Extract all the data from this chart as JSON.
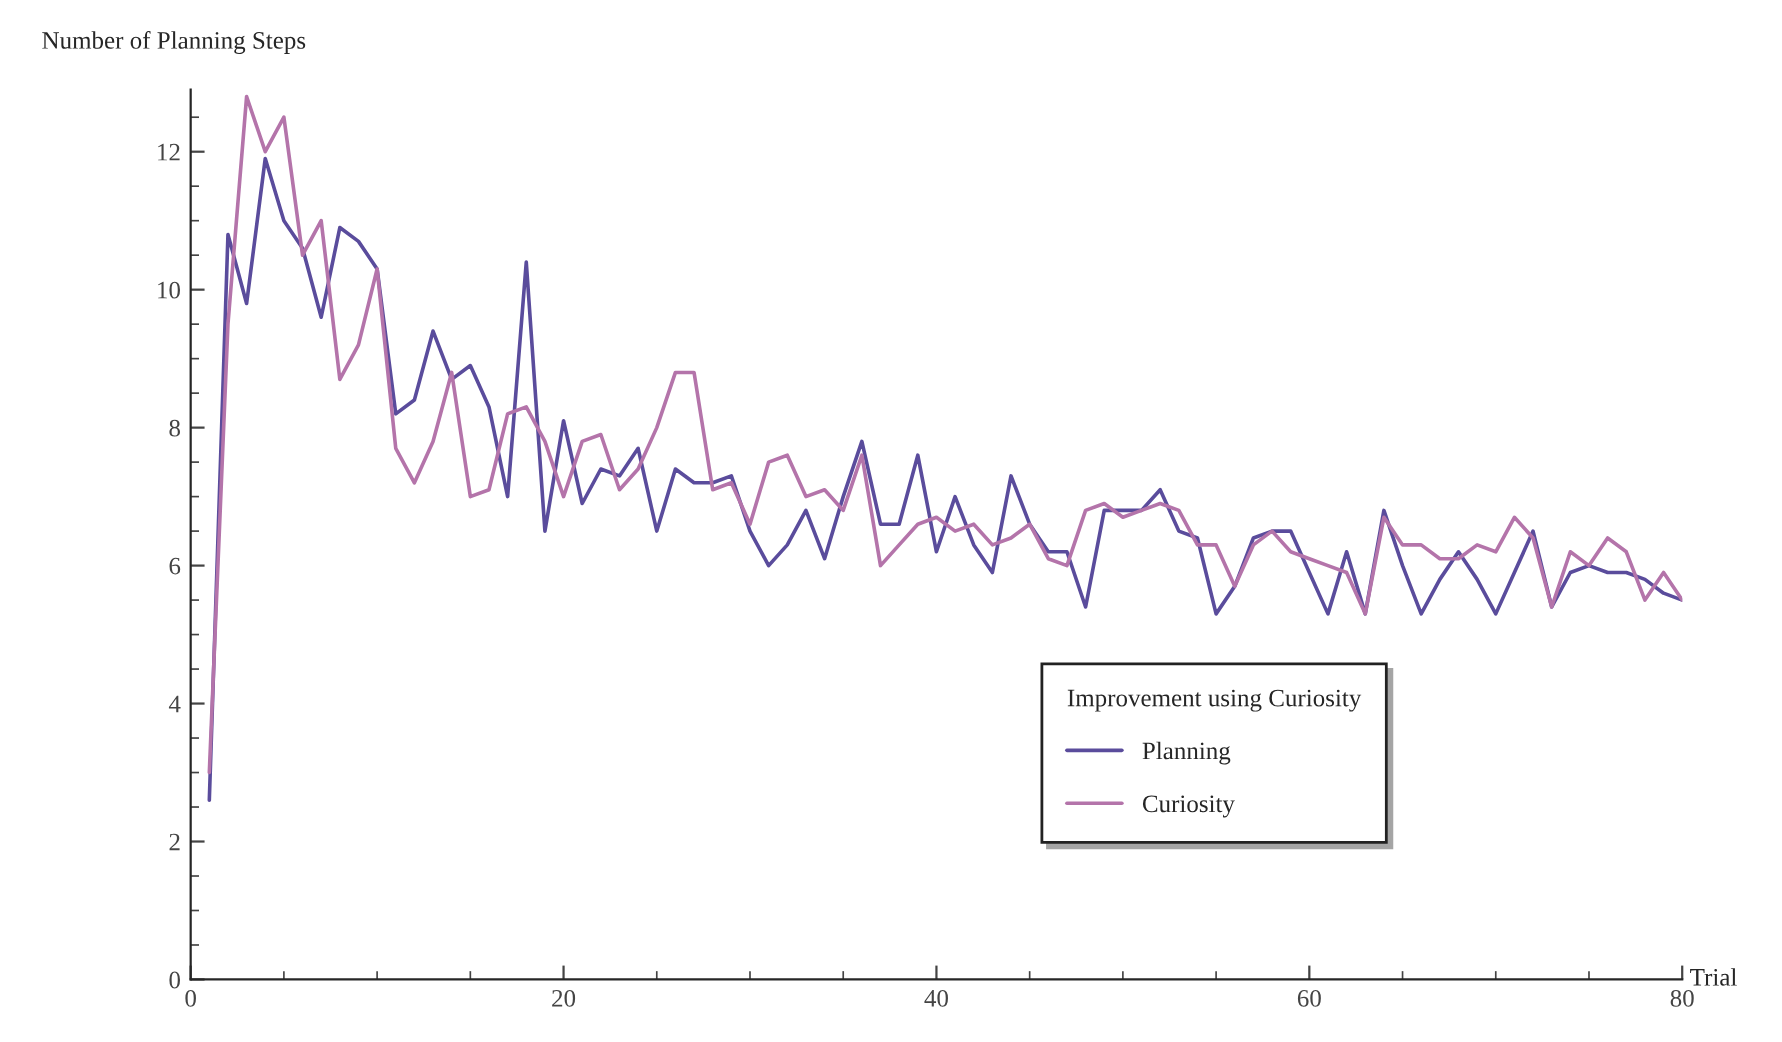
{
  "chart_data": {
    "type": "line",
    "xlabel": "Trial",
    "ylabel": "Number of Planning Steps",
    "legend_title": "Improvement using Curiosity",
    "legend": "bottom right",
    "grid": false,
    "marker": "none",
    "line_style": "solid",
    "x": [
      1,
      2,
      3,
      4,
      5,
      6,
      7,
      8,
      9,
      10,
      11,
      12,
      13,
      14,
      15,
      16,
      17,
      18,
      19,
      20,
      21,
      22,
      23,
      24,
      25,
      26,
      27,
      28,
      29,
      30,
      31,
      32,
      33,
      34,
      35,
      36,
      37,
      38,
      39,
      40,
      41,
      42,
      43,
      44,
      45,
      46,
      47,
      48,
      49,
      50,
      51,
      52,
      53,
      54,
      55,
      56,
      57,
      58,
      59,
      60,
      61,
      62,
      63,
      64,
      65,
      66,
      67,
      68,
      69,
      70,
      71,
      72,
      73,
      74,
      75,
      76,
      77,
      78,
      79,
      80
    ],
    "xlim": [
      0,
      80
    ],
    "xticks": [
      0,
      20,
      40,
      60,
      80
    ],
    "ylim": [
      0,
      12.9
    ],
    "yticks": [
      0,
      2,
      4,
      6,
      8,
      10,
      12
    ],
    "series": [
      {
        "name": "Planning",
        "color": "#5a4c9c",
        "values": [
          2.6,
          10.8,
          9.8,
          11.9,
          11.0,
          10.6,
          9.6,
          10.9,
          10.7,
          10.3,
          8.2,
          8.4,
          9.4,
          8.7,
          8.9,
          8.3,
          7.0,
          10.4,
          6.5,
          8.1,
          6.9,
          7.4,
          7.3,
          7.7,
          6.5,
          7.4,
          7.2,
          7.2,
          7.3,
          6.5,
          6.0,
          6.3,
          6.8,
          6.1,
          7.0,
          7.8,
          6.6,
          6.6,
          7.6,
          6.2,
          7.0,
          6.3,
          5.9,
          7.3,
          6.6,
          6.2,
          6.2,
          5.4,
          6.8,
          6.8,
          6.8,
          7.1,
          6.5,
          6.4,
          5.3,
          5.7,
          6.4,
          6.5,
          6.5,
          5.9,
          5.3,
          6.2,
          5.3,
          6.8,
          6.0,
          5.3,
          5.8,
          6.2,
          5.8,
          5.3,
          5.9,
          6.5,
          5.4,
          5.9,
          6.0,
          5.9,
          5.9,
          5.8,
          5.6,
          5.5
        ]
      },
      {
        "name": "Curiosity",
        "color": "#b474aa",
        "values": [
          3.0,
          9.5,
          12.8,
          12.0,
          12.5,
          10.5,
          11.0,
          8.7,
          9.2,
          10.3,
          7.7,
          7.2,
          7.8,
          8.8,
          7.0,
          7.1,
          8.2,
          8.3,
          7.8,
          7.0,
          7.8,
          7.9,
          7.1,
          7.4,
          8.0,
          8.8,
          8.8,
          7.1,
          7.2,
          6.6,
          7.5,
          7.6,
          7.0,
          7.1,
          6.8,
          7.6,
          6.0,
          6.3,
          6.6,
          6.7,
          6.5,
          6.6,
          6.3,
          6.4,
          6.6,
          6.1,
          6.0,
          6.8,
          6.9,
          6.7,
          6.8,
          6.9,
          6.8,
          6.3,
          6.3,
          5.7,
          6.3,
          6.5,
          6.2,
          6.1,
          6.0,
          5.9,
          5.3,
          6.7,
          6.3,
          6.3,
          6.1,
          6.1,
          6.3,
          6.2,
          6.7,
          6.4,
          5.4,
          6.2,
          6.0,
          6.4,
          6.2,
          5.5,
          5.9,
          5.5
        ]
      }
    ]
  }
}
